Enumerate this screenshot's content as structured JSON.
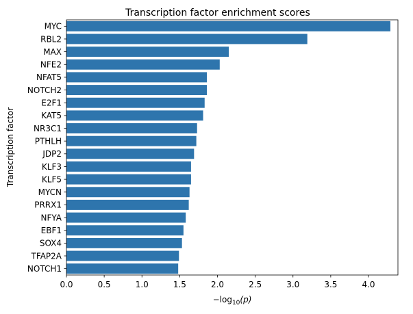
{
  "chart_data": {
    "type": "bar",
    "orientation": "horizontal",
    "title": "Transcription factor enrichment scores",
    "xlabel_main": "−log",
    "xlabel_sub": "10",
    "xlabel_tail": "(p)",
    "ylabel": "Transcription factor",
    "categories": [
      "MYC",
      "RBL2",
      "MAX",
      "NFE2",
      "NFAT5",
      "NOTCH2",
      "E2F1",
      "KAT5",
      "NR3C1",
      "PTHLH",
      "JDP2",
      "KLF3",
      "KLF5",
      "MYCN",
      "PRRX1",
      "NFYA",
      "EBF1",
      "SOX4",
      "TFAP2A",
      "NOTCH1"
    ],
    "values": [
      4.29,
      3.19,
      2.15,
      2.03,
      1.86,
      1.86,
      1.83,
      1.81,
      1.73,
      1.72,
      1.69,
      1.65,
      1.65,
      1.63,
      1.62,
      1.58,
      1.55,
      1.53,
      1.49,
      1.48
    ],
    "xlim": [
      0,
      4.39
    ],
    "xticks": [
      "0.0",
      "0.5",
      "1.0",
      "1.5",
      "2.0",
      "2.5",
      "3.0",
      "3.5",
      "4.0"
    ],
    "bar_color": "#2e75ad",
    "grid": false,
    "legend": "none"
  }
}
